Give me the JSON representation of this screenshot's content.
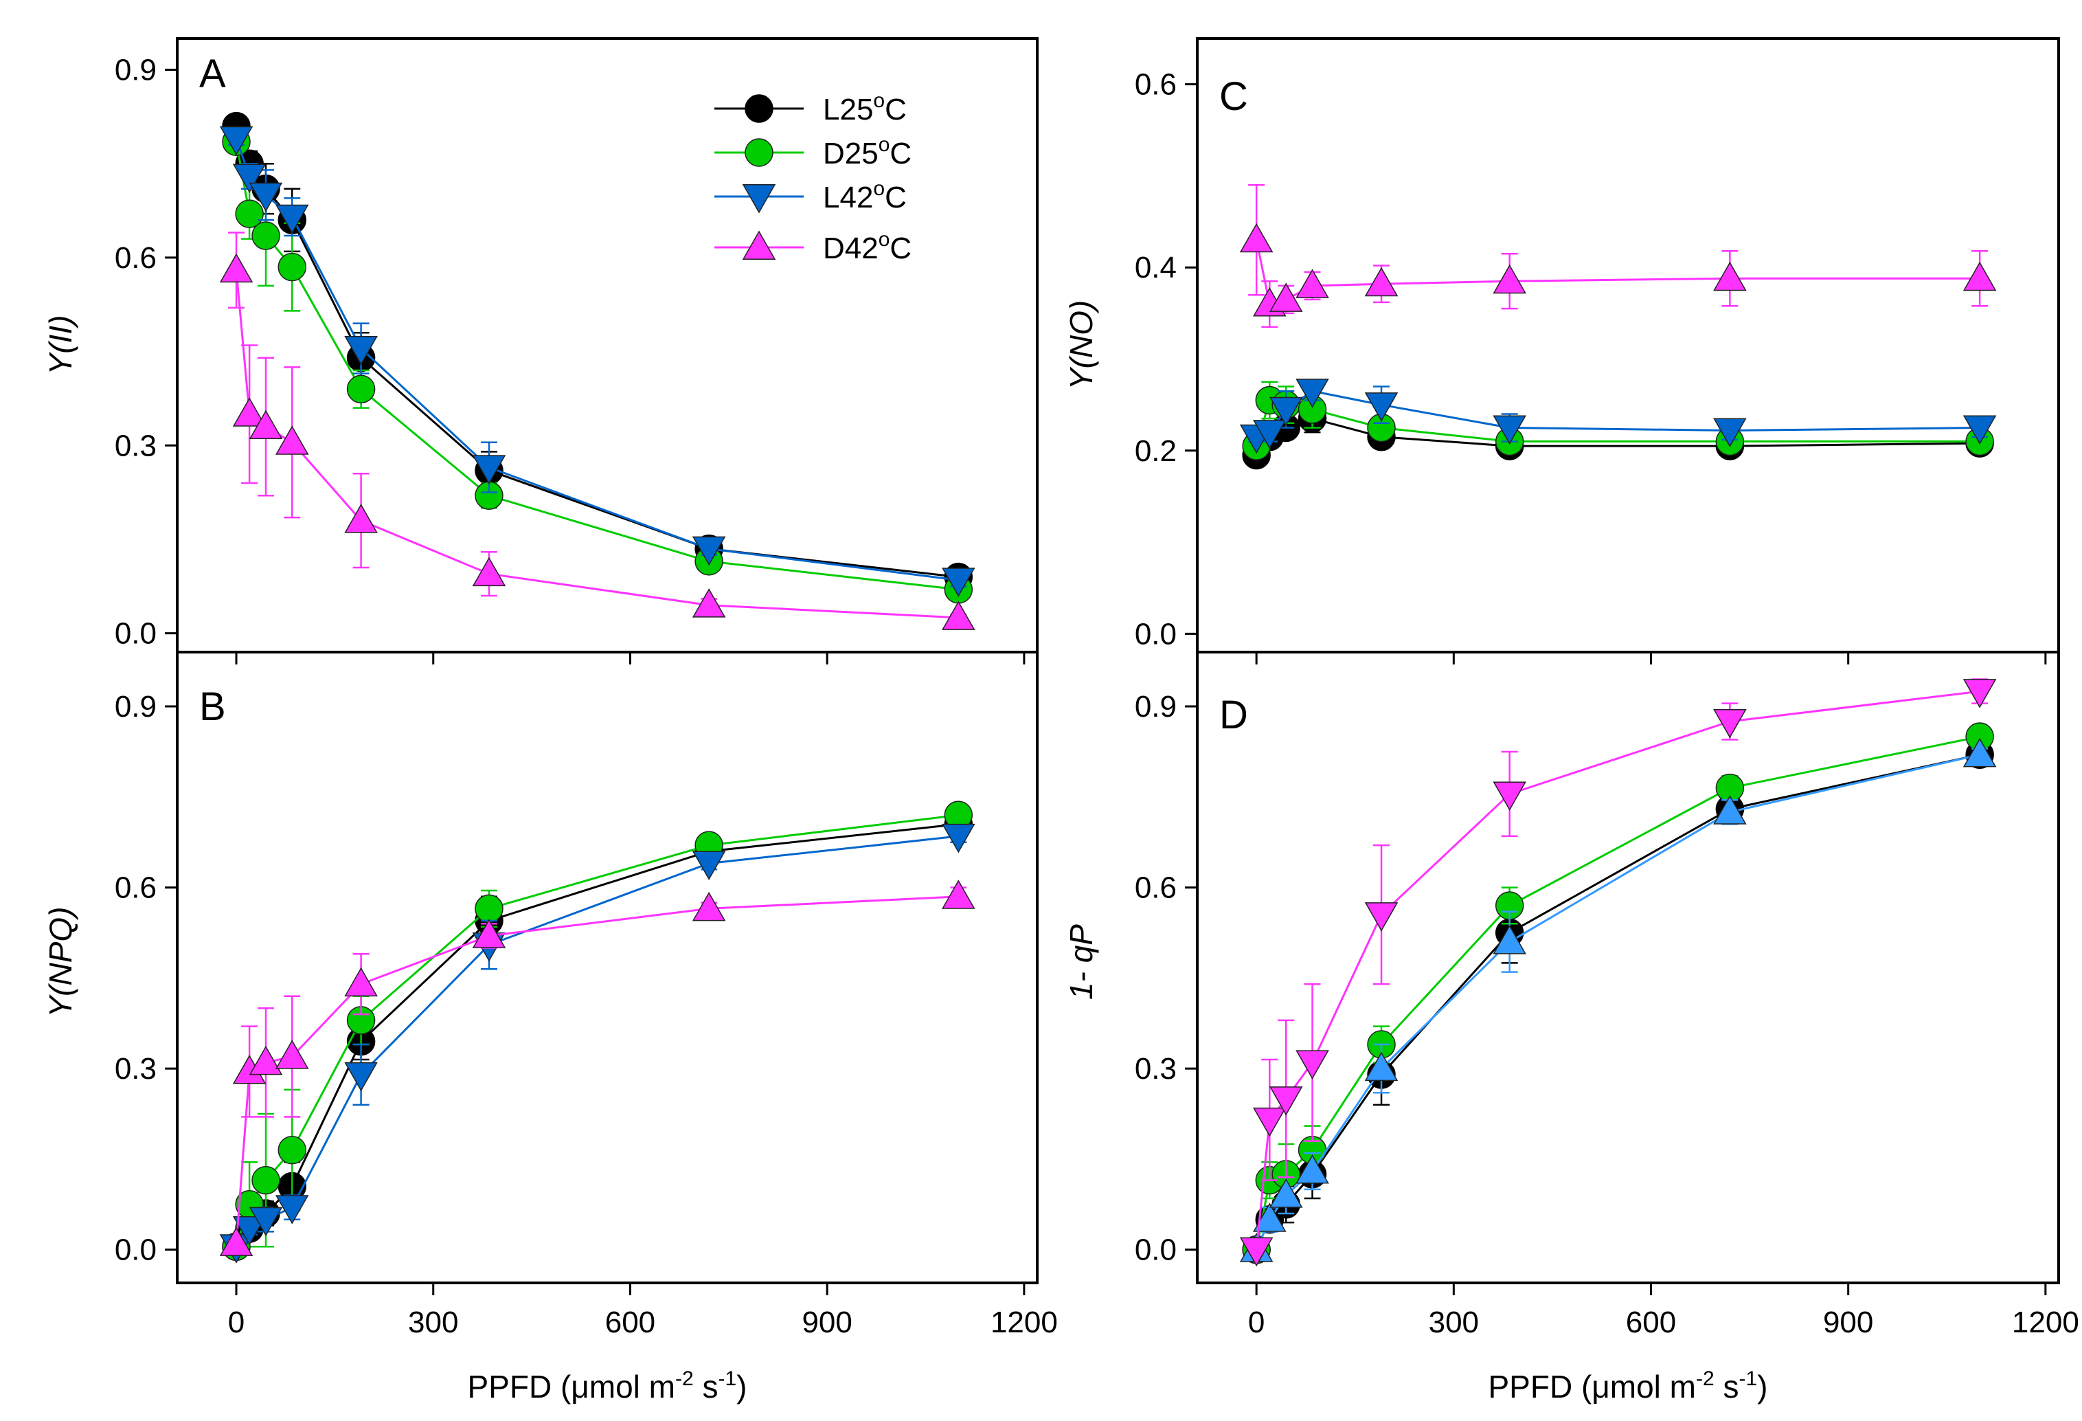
{
  "chart_data": [
    {
      "panel": "A",
      "type": "line",
      "ylabel": "Y(II)",
      "xlabel": "",
      "xlim": [
        -90,
        1220
      ],
      "ylim": [
        -0.03,
        0.95
      ],
      "yticks": [
        "0.0",
        "0.3",
        "0.6",
        "0.9"
      ],
      "ytick_values": [
        0,
        0.3,
        0.6,
        0.9
      ],
      "xticks": [],
      "xtick_values": [
        0,
        300,
        600,
        900,
        1200
      ],
      "x": [
        0,
        20,
        45,
        85,
        190,
        385,
        720,
        1100
      ],
      "series": [
        {
          "name": "L25°C",
          "color": "#000000",
          "marker": "circle",
          "values": [
            0.81,
            0.75,
            0.71,
            0.66,
            0.44,
            0.26,
            0.135,
            0.09
          ],
          "errors": [
            0.01,
            0.02,
            0.04,
            0.05,
            0.04,
            0.03,
            0.01,
            0.01
          ]
        },
        {
          "name": "D25°C",
          "color": "#00cc00",
          "marker": "circle",
          "values": [
            0.785,
            0.67,
            0.635,
            0.585,
            0.39,
            0.22,
            0.115,
            0.07
          ],
          "errors": [
            0.01,
            0.04,
            0.08,
            0.07,
            0.03,
            0.02,
            0.01,
            0.01
          ]
        },
        {
          "name": "L42°C",
          "color": "#0066cc",
          "marker": "triangle-down",
          "values": [
            0.79,
            0.73,
            0.7,
            0.665,
            0.455,
            0.265,
            0.135,
            0.085
          ],
          "errors": [
            0.01,
            0.02,
            0.04,
            0.03,
            0.04,
            0.04,
            0.01,
            0.01
          ]
        },
        {
          "name": "D42°C",
          "color": "#ff33ff",
          "marker": "triangle-up",
          "values": [
            0.58,
            0.35,
            0.33,
            0.305,
            0.18,
            0.095,
            0.045,
            0.025
          ],
          "errors": [
            0.06,
            0.11,
            0.11,
            0.12,
            0.075,
            0.035,
            0.01,
            0.005
          ]
        }
      ]
    },
    {
      "panel": "B",
      "type": "line",
      "ylabel": "Y(NPQ)",
      "xlabel": "PPFD (μmol m⁻² s⁻¹)",
      "xlim": [
        -90,
        1220
      ],
      "ylim": [
        -0.055,
        0.99
      ],
      "yticks": [
        "0.0",
        "0.3",
        "0.6",
        "0.9"
      ],
      "ytick_values": [
        0,
        0.3,
        0.6,
        0.9
      ],
      "xticks": [
        "0",
        "300",
        "600",
        "900",
        "1200"
      ],
      "xtick_values": [
        0,
        300,
        600,
        900,
        1200
      ],
      "x": [
        0,
        20,
        45,
        85,
        190,
        385,
        720,
        1100
      ],
      "series": [
        {
          "name": "L25°C",
          "color": "#000000",
          "marker": "circle",
          "values": [
            0.005,
            0.035,
            0.06,
            0.105,
            0.345,
            0.545,
            0.66,
            0.705
          ],
          "errors": [
            0.005,
            0.01,
            0.02,
            0.04,
            0.03,
            0.04,
            0.01,
            0.01
          ]
        },
        {
          "name": "D25°C",
          "color": "#00cc00",
          "marker": "circle",
          "values": [
            0.005,
            0.075,
            0.115,
            0.165,
            0.38,
            0.565,
            0.67,
            0.72
          ],
          "errors": [
            0.005,
            0.07,
            0.11,
            0.1,
            0.04,
            0.03,
            0.01,
            0.01
          ]
        },
        {
          "name": "L42°C",
          "color": "#0066cc",
          "marker": "triangle-down",
          "values": [
            0.005,
            0.035,
            0.05,
            0.07,
            0.29,
            0.505,
            0.64,
            0.685
          ],
          "errors": [
            0.005,
            0.01,
            0.02,
            0.02,
            0.05,
            0.04,
            0.01,
            0.01
          ]
        },
        {
          "name": "D42°C",
          "color": "#ff33ff",
          "marker": "triangle-up",
          "values": [
            0.01,
            0.295,
            0.31,
            0.32,
            0.44,
            0.52,
            0.565,
            0.585
          ],
          "errors": [
            0.005,
            0.075,
            0.09,
            0.1,
            0.05,
            0.02,
            0.01,
            0.015
          ]
        }
      ]
    },
    {
      "panel": "C",
      "type": "line",
      "ylabel": "Y(NO)",
      "xlabel": "",
      "xlim": [
        -90,
        1220
      ],
      "ylim": [
        -0.02,
        0.65
      ],
      "yticks": [
        "0.0",
        "0.2",
        "0.4",
        "0.6"
      ],
      "ytick_values": [
        0,
        0.2,
        0.4,
        0.6
      ],
      "xticks": [],
      "xtick_values": [
        0,
        300,
        600,
        900,
        1200
      ],
      "x": [
        0,
        20,
        45,
        85,
        190,
        385,
        720,
        1100
      ],
      "series": [
        {
          "name": "L25°C",
          "color": "#000000",
          "marker": "circle",
          "values": [
            0.195,
            0.215,
            0.225,
            0.235,
            0.215,
            0.205,
            0.205,
            0.208
          ],
          "errors": [
            0.005,
            0.01,
            0.01,
            0.015,
            0.01,
            0.005,
            0.005,
            0.005
          ]
        },
        {
          "name": "D25°C",
          "color": "#00cc00",
          "marker": "circle",
          "values": [
            0.205,
            0.255,
            0.25,
            0.245,
            0.225,
            0.21,
            0.21,
            0.21
          ],
          "errors": [
            0.005,
            0.02,
            0.02,
            0.02,
            0.01,
            0.005,
            0.005,
            0.005
          ]
        },
        {
          "name": "L42°C",
          "color": "#0066cc",
          "marker": "triangle-down",
          "values": [
            0.215,
            0.22,
            0.245,
            0.265,
            0.25,
            0.225,
            0.222,
            0.225
          ],
          "errors": [
            0.005,
            0.01,
            0.02,
            0.01,
            0.02,
            0.015,
            0.01,
            0.01
          ]
        },
        {
          "name": "D42°C",
          "color": "#ff33ff",
          "marker": "triangle-up",
          "values": [
            0.43,
            0.36,
            0.365,
            0.38,
            0.382,
            0.385,
            0.388,
            0.388
          ],
          "errors": [
            0.06,
            0.025,
            0.015,
            0.015,
            0.02,
            0.03,
            0.03,
            0.03
          ]
        }
      ]
    },
    {
      "panel": "D",
      "type": "line",
      "ylabel": "1- qP",
      "xlabel": "PPFD (μmol m⁻² s⁻¹)",
      "xlim": [
        -90,
        1220
      ],
      "ylim": [
        -0.055,
        0.99
      ],
      "yticks": [
        "0.0",
        "0.3",
        "0.6",
        "0.9"
      ],
      "ytick_values": [
        0,
        0.3,
        0.6,
        0.9
      ],
      "xticks": [
        "0",
        "300",
        "600",
        "900",
        "1200"
      ],
      "xtick_values": [
        0,
        300,
        600,
        900,
        1200
      ],
      "x": [
        0,
        20,
        45,
        85,
        190,
        385,
        720,
        1100
      ],
      "series": [
        {
          "name": "L25°C",
          "color": "#000000",
          "marker": "circle",
          "values": [
            0.0,
            0.05,
            0.075,
            0.125,
            0.29,
            0.525,
            0.73,
            0.82
          ],
          "errors": [
            0.005,
            0.02,
            0.03,
            0.04,
            0.05,
            0.05,
            0.02,
            0.01
          ]
        },
        {
          "name": "D25°C",
          "color": "#00cc00",
          "marker": "circle",
          "values": [
            0.0,
            0.115,
            0.125,
            0.165,
            0.34,
            0.57,
            0.765,
            0.85
          ],
          "errors": [
            0.005,
            0.03,
            0.05,
            0.04,
            0.03,
            0.03,
            0.02,
            0.01
          ]
        },
        {
          "name": "L42°C",
          "color": "#3399ff",
          "marker": "triangle-up",
          "values": [
            0.0,
            0.05,
            0.09,
            0.13,
            0.3,
            0.51,
            0.725,
            0.82
          ],
          "errors": [
            0.005,
            0.02,
            0.03,
            0.03,
            0.04,
            0.05,
            0.02,
            0.01
          ]
        },
        {
          "name": "D42°C",
          "color": "#ff33ff",
          "marker": "triangle-down",
          "values": [
            0.0,
            0.215,
            0.25,
            0.31,
            0.555,
            0.755,
            0.875,
            0.925
          ],
          "errors": [
            0.005,
            0.1,
            0.13,
            0.13,
            0.115,
            0.07,
            0.03,
            0.02
          ]
        }
      ]
    }
  ],
  "legend": {
    "entries": [
      {
        "base": "L25",
        "sup": "o",
        "unit": "C",
        "color": "#000000",
        "marker": "circle"
      },
      {
        "base": "D25",
        "sup": "o",
        "unit": "C",
        "color": "#00cc00",
        "marker": "circle"
      },
      {
        "base": "L42",
        "sup": "o",
        "unit": "C",
        "color": "#0066cc",
        "marker": "triangle-down"
      },
      {
        "base": "D42",
        "sup": "o",
        "unit": "C",
        "color": "#ff33ff",
        "marker": "triangle-up"
      }
    ]
  },
  "xaxis_title": {
    "prefix": "PPFD (",
    "mu": "μ",
    "mid": "mol m",
    "exp1": "-2",
    "mid2": " s",
    "exp2": "-1",
    "suffix": ")"
  }
}
